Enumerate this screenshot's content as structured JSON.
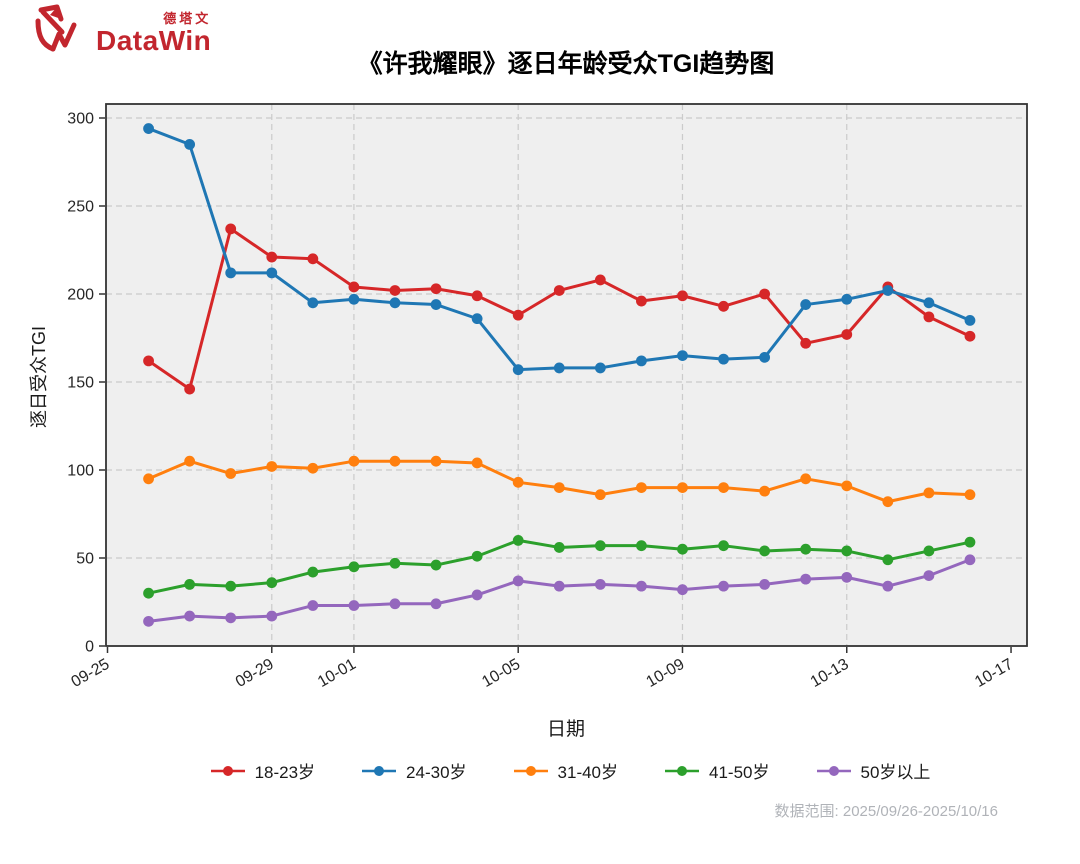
{
  "logo": {
    "brand_cn": "德塔文",
    "brand_en": "DataWin",
    "color": "#c2262e"
  },
  "footer": {
    "data_range": "数据范围: 2025/09/26-2025/10/16"
  },
  "chart_data": {
    "type": "line",
    "title": "《许我耀眼》逐日年龄受众TGI趋势图",
    "xlabel": "日期",
    "ylabel": "逐日受众TGI",
    "grid": true,
    "legend_position": "bottom",
    "plot_bg": "#efefef",
    "ylim": [
      0,
      308
    ],
    "yticks": [
      0,
      50,
      100,
      150,
      200,
      250,
      300
    ],
    "xticks": [
      {
        "label": "09-25",
        "day": 0
      },
      {
        "label": "09-29",
        "day": 4
      },
      {
        "label": "10-01",
        "day": 6
      },
      {
        "label": "10-05",
        "day": 10
      },
      {
        "label": "10-09",
        "day": 14
      },
      {
        "label": "10-13",
        "day": 18
      },
      {
        "label": "10-17",
        "day": 22
      }
    ],
    "x": [
      "09-26",
      "09-27",
      "09-28",
      "09-29",
      "09-30",
      "10-01",
      "10-02",
      "10-03",
      "10-04",
      "10-05",
      "10-06",
      "10-07",
      "10-08",
      "10-09",
      "10-10",
      "10-11",
      "10-12",
      "10-13",
      "10-14",
      "10-15",
      "10-16"
    ],
    "series": [
      {
        "name": "18-23岁",
        "color": "#d62728",
        "values": [
          162,
          146,
          237,
          221,
          220,
          204,
          202,
          203,
          199,
          188,
          202,
          208,
          196,
          199,
          193,
          200,
          172,
          177,
          204,
          187,
          176
        ]
      },
      {
        "name": "24-30岁",
        "color": "#1f77b4",
        "values": [
          294,
          285,
          212,
          212,
          195,
          197,
          195,
          194,
          186,
          157,
          158,
          158,
          162,
          165,
          163,
          164,
          194,
          197,
          202,
          195,
          185
        ]
      },
      {
        "name": "31-40岁",
        "color": "#ff7f0e",
        "values": [
          95,
          105,
          98,
          102,
          101,
          105,
          105,
          105,
          104,
          93,
          90,
          86,
          90,
          90,
          90,
          88,
          95,
          91,
          82,
          87,
          86
        ]
      },
      {
        "name": "41-50岁",
        "color": "#2ca02c",
        "values": [
          30,
          35,
          34,
          36,
          42,
          45,
          47,
          46,
          51,
          60,
          56,
          57,
          57,
          55,
          57,
          54,
          55,
          54,
          49,
          54,
          59
        ]
      },
      {
        "name": "50岁以上",
        "color": "#9467bd",
        "values": [
          14,
          17,
          16,
          17,
          23,
          23,
          24,
          24,
          29,
          37,
          34,
          35,
          34,
          32,
          34,
          35,
          38,
          39,
          34,
          40,
          49
        ]
      }
    ]
  }
}
